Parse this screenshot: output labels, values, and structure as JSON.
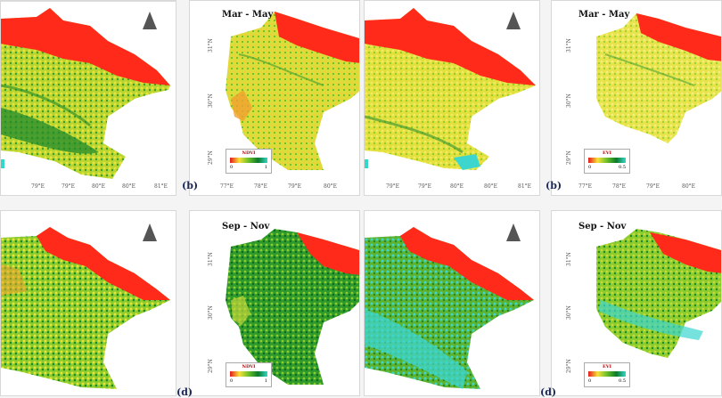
{
  "panels": {
    "top_left": {
      "ticks": [
        "79°E",
        "79°E",
        "80°E",
        "80°E",
        "81°E"
      ]
    },
    "top_mid": {
      "title": "Mar - May",
      "legend": {
        "name": "NDVI",
        "min": "0",
        "max": "1"
      },
      "ticks": [
        "77°E",
        "78°E",
        "79°E",
        "80°E"
      ],
      "yticks": [
        "31°N",
        "30°N",
        "29°N"
      ]
    },
    "top_right": {
      "ticks": [
        "79°E",
        "79°E",
        "80°E",
        "80°E",
        "81°E"
      ]
    },
    "top_far": {
      "title": "Mar - May",
      "legend": {
        "name": "EVI",
        "min": "0",
        "max": "0.5"
      },
      "ticks": [
        "77°E",
        "78°E",
        "79°E",
        "80°E"
      ],
      "yticks": [
        "31°N",
        "30°N",
        "29°N"
      ]
    },
    "bot_mid": {
      "title": "Sep - Nov",
      "legend": {
        "name": "NDVI",
        "min": "0",
        "max": "1"
      },
      "yticks": [
        "31°N",
        "30°N",
        "29°N"
      ]
    },
    "bot_far": {
      "title": "Sep - Nov",
      "legend": {
        "name": "EVI",
        "min": "0",
        "max": "0.5"
      },
      "yticks": [
        "31°N",
        "30°N",
        "29°N"
      ]
    }
  },
  "labels": {
    "b1": "(b)",
    "b2": "(b)",
    "d1": "(d)",
    "d2": "(d)"
  },
  "colors": {
    "high_elev": "#ff2a1a",
    "veg_low": "#e8e23a",
    "veg_mid": "#8ccc2c",
    "veg_high": "#1e8a2c",
    "water": "#3cd6cf"
  }
}
